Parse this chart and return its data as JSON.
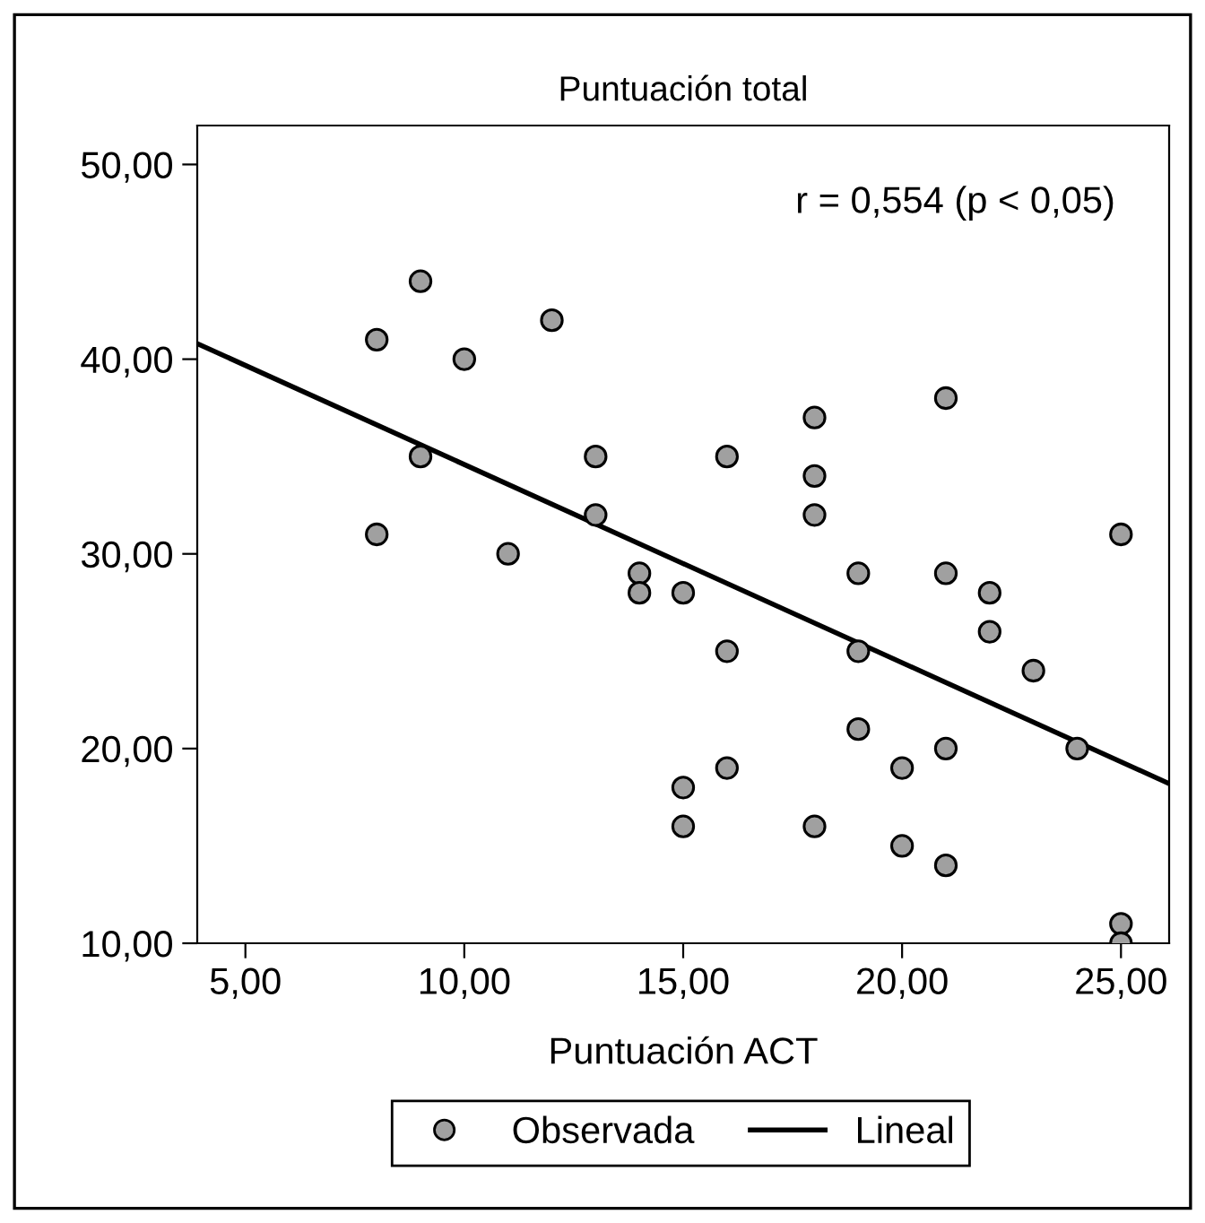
{
  "chart_data": {
    "type": "scatter",
    "title": "Puntuación total",
    "xlabel": "Puntuación ACT",
    "xlim": [
      3.9,
      26.1
    ],
    "ylim": [
      10,
      52
    ],
    "xticks": [
      {
        "value": 5,
        "label": "5,00"
      },
      {
        "value": 10,
        "label": "10,00"
      },
      {
        "value": 15,
        "label": "15,00"
      },
      {
        "value": 20,
        "label": "20,00"
      },
      {
        "value": 25,
        "label": "25,00"
      }
    ],
    "yticks": [
      {
        "value": 10,
        "label": "10,00"
      },
      {
        "value": 20,
        "label": "20,00"
      },
      {
        "value": 30,
        "label": "30,00"
      },
      {
        "value": 40,
        "label": "40,00"
      },
      {
        "value": 50,
        "label": "50,00"
      }
    ],
    "series": [
      {
        "name": "Observada",
        "color": "#a0a0a0",
        "marker": "circle",
        "x": [
          8,
          8,
          9,
          9,
          10,
          11,
          12,
          13,
          13,
          14,
          14,
          15,
          15,
          15,
          16,
          16,
          16,
          18,
          18,
          18,
          18,
          19,
          19,
          19,
          20,
          20,
          21,
          21,
          21,
          21,
          22,
          22,
          23,
          24,
          25,
          25,
          25
        ],
        "values": [
          41,
          31,
          44,
          35,
          40,
          30,
          42,
          35,
          32,
          29,
          28,
          28,
          18,
          16,
          35,
          25,
          19,
          37,
          34,
          32,
          16,
          29,
          25,
          21,
          19,
          15,
          38,
          29,
          20,
          14,
          28,
          26,
          24,
          20,
          31,
          11,
          10
        ]
      },
      {
        "name": "Lineal",
        "type": "line",
        "color": "#000000",
        "x": [
          3.9,
          26.1
        ],
        "values": [
          40.8,
          18.2
        ]
      }
    ],
    "annotations": [
      "r = 0,554 (p < 0,05)"
    ],
    "legend": "bottom",
    "grid": false
  }
}
